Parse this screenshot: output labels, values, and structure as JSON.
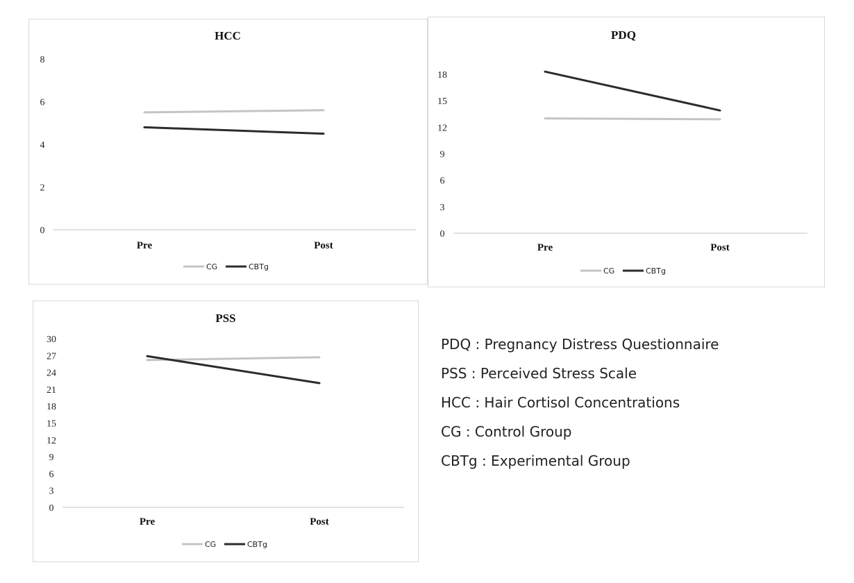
{
  "colors": {
    "cg": "#c4c4c4",
    "cbtg": "#2b2b2b",
    "axis": "#d0d0d0"
  },
  "chart_data": [
    {
      "type": "line",
      "title": "HCC",
      "categories": [
        "Pre",
        "Post"
      ],
      "yticks": [
        0,
        2,
        4,
        6,
        8
      ],
      "ylim": [
        0,
        8
      ],
      "series": [
        {
          "name": "CG",
          "values": [
            5.5,
            5.6
          ]
        },
        {
          "name": "CBTg",
          "values": [
            4.8,
            4.5
          ]
        }
      ],
      "legend": "bottom",
      "grid": false
    },
    {
      "type": "line",
      "title": "PDQ",
      "categories": [
        "Pre",
        "Post"
      ],
      "yticks": [
        0,
        3,
        6,
        9,
        12,
        15,
        18
      ],
      "ylim": [
        0,
        18
      ],
      "series": [
        {
          "name": "CG",
          "values": [
            13.0,
            12.9
          ]
        },
        {
          "name": "CBTg",
          "values": [
            18.3,
            13.9
          ]
        }
      ],
      "legend": "bottom",
      "grid": false
    },
    {
      "type": "line",
      "title": "PSS",
      "categories": [
        "Pre",
        "Post"
      ],
      "yticks": [
        0,
        3,
        6,
        9,
        12,
        15,
        18,
        21,
        24,
        27,
        30
      ],
      "ylim": [
        0,
        30
      ],
      "series": [
        {
          "name": "CG",
          "values": [
            26.2,
            26.7
          ]
        },
        {
          "name": "CBTg",
          "values": [
            26.9,
            22.1
          ]
        }
      ],
      "legend": "bottom",
      "grid": false
    }
  ],
  "glossary": [
    "PDQ : Pregnancy Distress Questionnaire",
    "PSS : Perceived Stress Scale",
    "HCC : Hair Cortisol Concentrations",
    "CG : Control Group",
    "CBTg : Experimental Group"
  ]
}
